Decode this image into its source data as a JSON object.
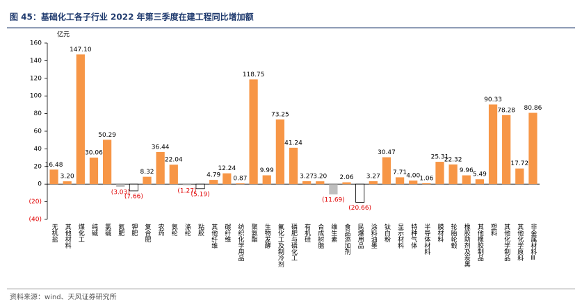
{
  "chart_data": {
    "type": "bar",
    "title": "图 45：基础化工各子行业 2022 年第三季度在建工程同比增加额",
    "y_unit": "亿元",
    "source": "资料来源：wind、天风证券研究所",
    "categories": [
      "无机盐",
      "其他材料",
      "煤化工",
      "纯碱",
      "氯碱",
      "氮肥",
      "钾肥",
      "复合肥",
      "农药",
      "氨纶",
      "涤纶",
      "粘胶",
      "其他纤维",
      "碳纤维",
      "纺织化学用品",
      "聚氨酯",
      "生物发酵",
      "氟化工及制冷剂",
      "磷肥与磷化工",
      "有机硅",
      "合成树脂",
      "维生素",
      "食品添加剂",
      "民爆用品",
      "涂料油墨",
      "钛白粉",
      "显示材料",
      "特种气体",
      "半导体材料",
      "膜材料",
      "轮胎轮毂",
      "橡胶助剂及炭黑",
      "其他橡胶制品",
      "塑料",
      "其他化学制品",
      "其他化学原料",
      "非金属材料Ⅲ"
    ],
    "values": [
      16.48,
      3.2,
      147.1,
      30.06,
      50.29,
      -3.03,
      -7.66,
      8.32,
      36.44,
      22.04,
      -1.27,
      -5.19,
      4.79,
      12.24,
      0.87,
      118.75,
      9.99,
      73.25,
      41.24,
      3.27,
      3.2,
      -11.69,
      2.06,
      -20.66,
      3.27,
      30.47,
      7.71,
      4.0,
      1.06,
      25.31,
      22.32,
      9.96,
      5.49,
      90.33,
      78.28,
      17.72,
      80.86
    ],
    "value_labels": [
      "16.48",
      "3.20",
      "147.10",
      "30.06",
      "50.29",
      "(3.03)",
      "(7.66)",
      "8.32",
      "36.44",
      "22.04",
      "(1.27)",
      "(5.19)",
      "4.79",
      "12.24",
      "0.87",
      "118.75",
      "9.99",
      "73.25",
      "41.24",
      "3.27",
      "3.20",
      "(11.69)",
      "2.06",
      "(20.66)",
      "3.27",
      "30.47",
      "7.71",
      "4.00",
      "1.06",
      "25.31",
      "22.32",
      "9.96",
      "5.49",
      "90.33",
      "78.28",
      "17.72",
      "80.86"
    ],
    "colors": [
      "#f79646",
      "#f79646",
      "#f79646",
      "#f79646",
      "#f79646",
      "#bfbfbf",
      "#ffffff",
      "#f79646",
      "#f79646",
      "#f79646",
      "#bfbfbf",
      "#ffffff",
      "#f79646",
      "#f79646",
      "#f79646",
      "#f79646",
      "#f79646",
      "#f79646",
      "#f79646",
      "#f79646",
      "#f79646",
      "#bfbfbf",
      "#f79646",
      "#ffffff",
      "#f79646",
      "#f79646",
      "#f79646",
      "#f79646",
      "#f79646",
      "#f79646",
      "#f79646",
      "#f79646",
      "#f79646",
      "#f79646",
      "#f79646",
      "#f79646",
      "#f79646"
    ],
    "edge_color": "#000000",
    "negative_label_color": "#e00000",
    "ylim": [
      -40,
      160
    ],
    "yticks": [
      {
        "value": -40,
        "label": "(40)"
      },
      {
        "value": -20,
        "label": "(20)"
      },
      0,
      20,
      40,
      60,
      80,
      100,
      120,
      140,
      160
    ],
    "grid": false
  }
}
